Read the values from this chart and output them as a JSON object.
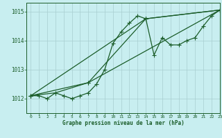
{
  "title": "Graphe pression niveau de la mer (hPa)",
  "bg_color": "#c8eef0",
  "grid_color": "#a8cdd0",
  "line_color": "#1a5c28",
  "xlim": [
    -0.5,
    23
  ],
  "ylim": [
    1011.5,
    1015.3
  ],
  "yticks": [
    1012,
    1013,
    1014,
    1015
  ],
  "xticks": [
    0,
    1,
    2,
    3,
    4,
    5,
    6,
    7,
    8,
    9,
    10,
    11,
    12,
    13,
    14,
    15,
    16,
    17,
    18,
    19,
    20,
    21,
    22,
    23
  ],
  "series1_x": [
    0,
    1,
    2,
    3,
    4,
    5,
    6,
    7,
    8,
    9,
    10,
    11,
    12,
    13,
    14,
    15,
    16,
    17,
    18,
    19,
    20,
    21,
    22,
    23
  ],
  "series1_y": [
    1012.1,
    1012.1,
    1012.0,
    1012.2,
    1012.1,
    1012.0,
    1012.1,
    1012.2,
    1012.5,
    1013.0,
    1013.9,
    1014.3,
    1014.6,
    1014.85,
    1014.75,
    1013.5,
    1014.1,
    1013.85,
    1013.85,
    1014.0,
    1014.1,
    1014.5,
    1014.85,
    1015.05
  ],
  "series2_x": [
    0,
    3,
    7,
    23
  ],
  "series2_y": [
    1012.1,
    1012.2,
    1012.55,
    1015.05
  ],
  "series3_x": [
    0,
    7,
    14,
    23
  ],
  "series3_y": [
    1012.1,
    1012.55,
    1014.75,
    1015.05
  ],
  "series4_x": [
    0,
    14,
    23
  ],
  "series4_y": [
    1012.1,
    1014.75,
    1015.05
  ]
}
